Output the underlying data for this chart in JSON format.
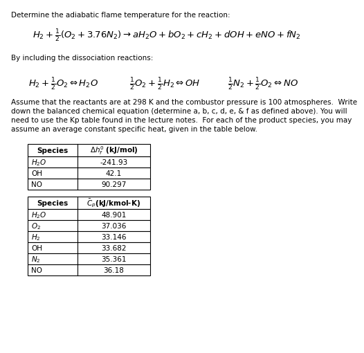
{
  "title_line": "Determine the adiabatic flame temperature for the reaction:",
  "paragraph_lines": [
    "Assume that the reactants are at 298 K and the combustor pressure is 100 atmospheres.  Write",
    "down the balanced chemical equation (determine a, b, c, d, e, & f as defined above). You will",
    "need to use the Kp table found in the lecture notes.  For each of the product species, you may",
    "assume an average constant specific heat, given in the table below."
  ],
  "table1_data": [
    [
      "H₂O",
      "-241.93"
    ],
    [
      "OH",
      "42.1"
    ],
    [
      "NO",
      "90.297"
    ]
  ],
  "table2_data": [
    [
      "H₂O",
      "48.901"
    ],
    [
      "O₂",
      "37.036"
    ],
    [
      "H₂",
      "33.146"
    ],
    [
      "OH",
      "33.682"
    ],
    [
      "N₂",
      "35.361"
    ],
    [
      "NO",
      "36.18"
    ]
  ],
  "bg_color": "#ffffff",
  "text_color": "#000000",
  "font_size_body": 7.5,
  "font_size_math": 9.5,
  "font_size_table": 7.5
}
